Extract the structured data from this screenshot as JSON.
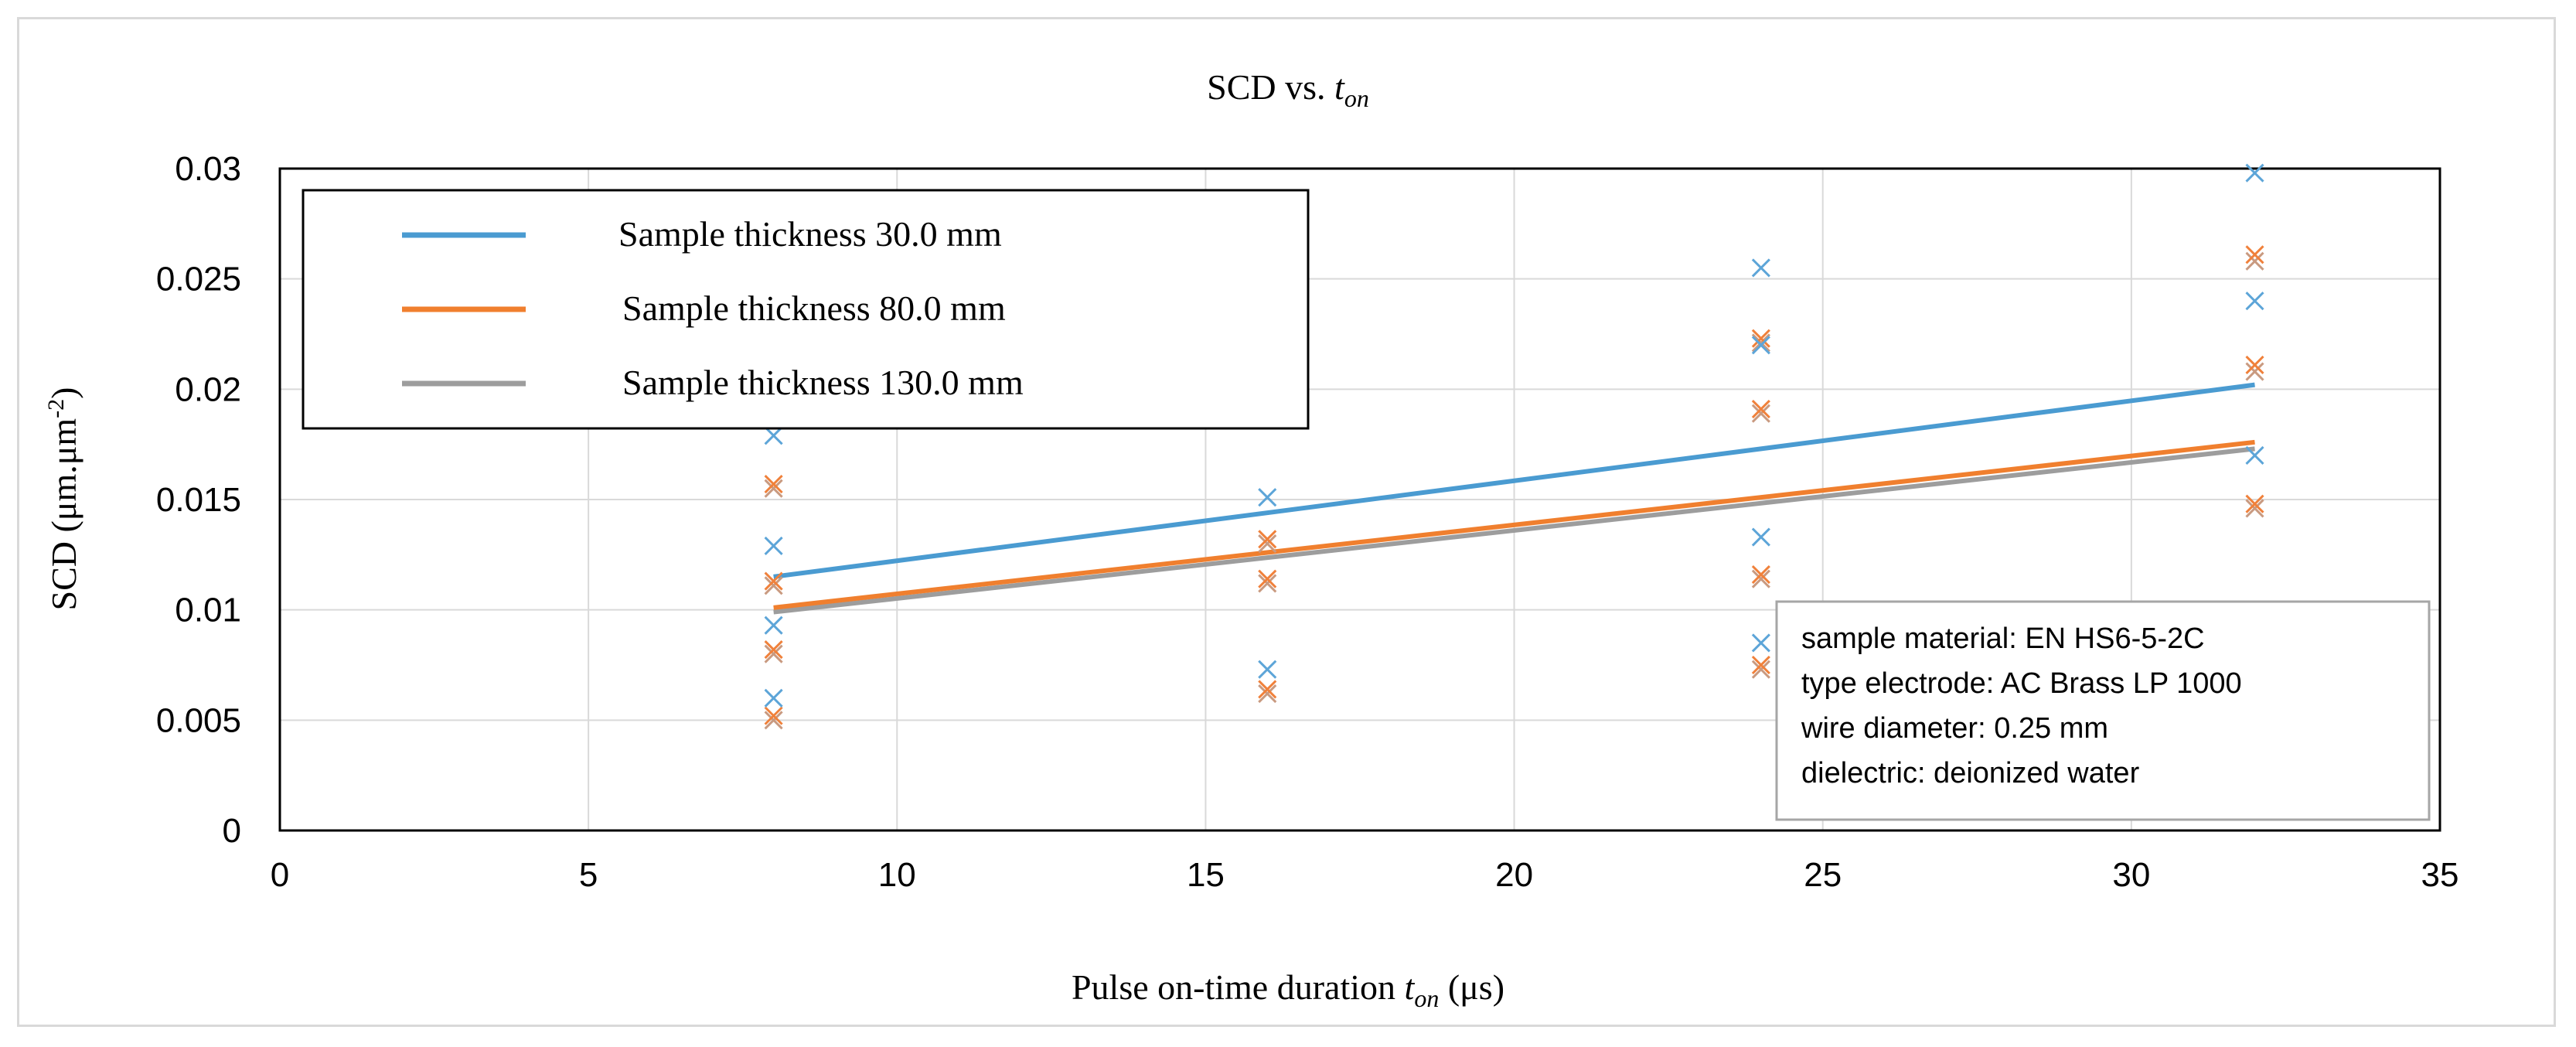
{
  "chart_data": {
    "type": "scatter",
    "title": {
      "main": "SCD vs. ",
      "italic": "t",
      "sub": "on"
    },
    "xlabel": {
      "prefix": "Pulse on-time duration ",
      "italic": "t",
      "sub": "on",
      "suffix": " (μs)"
    },
    "ylabel": {
      "prefix": "SCD (μm.μm",
      "sup": "-2",
      "suffix": ")"
    },
    "xlim": [
      0,
      35
    ],
    "ylim": [
      0,
      0.03
    ],
    "xticks": [
      0,
      5,
      10,
      15,
      20,
      25,
      30,
      35
    ],
    "yticks": [
      0,
      0.005,
      0.01,
      0.015,
      0.02,
      0.025,
      0.03
    ],
    "ytick_labels": [
      "0",
      "0.005",
      "0.01",
      "0.015",
      "0.02",
      "0.025",
      "0.03"
    ],
    "grid": true,
    "legend_position": "top-left",
    "series": [
      {
        "name": "Sample thickness 30.0 mm",
        "color": "#4a9bd1",
        "marker_color": "#5da5d8",
        "points": [
          [
            8,
            0.0179
          ],
          [
            8,
            0.0129
          ],
          [
            8,
            0.0093
          ],
          [
            8,
            0.006
          ],
          [
            16,
            0.0151
          ],
          [
            16,
            0.0073
          ],
          [
            24,
            0.0255
          ],
          [
            24,
            0.022
          ],
          [
            24,
            0.0133
          ],
          [
            24,
            0.0085
          ],
          [
            32,
            0.0298
          ],
          [
            32,
            0.024
          ],
          [
            32,
            0.017
          ]
        ],
        "trend": [
          [
            8,
            0.0115
          ],
          [
            32,
            0.0202
          ]
        ]
      },
      {
        "name": "Sample thickness 80.0 mm",
        "color": "#f07f2e",
        "marker_color": "#f0813b",
        "points": [
          [
            8,
            0.0157
          ],
          [
            8,
            0.0113
          ],
          [
            8,
            0.0082
          ],
          [
            8,
            0.0052
          ],
          [
            16,
            0.0132
          ],
          [
            16,
            0.0114
          ],
          [
            16,
            0.0064
          ],
          [
            24,
            0.0223
          ],
          [
            24,
            0.0191
          ],
          [
            24,
            0.0116
          ],
          [
            24,
            0.0075
          ],
          [
            32,
            0.0261
          ],
          [
            32,
            0.0211
          ],
          [
            32,
            0.0148
          ]
        ],
        "trend": [
          [
            8,
            0.0101
          ],
          [
            32,
            0.0176
          ]
        ]
      },
      {
        "name": "Sample thickness 130.0 mm",
        "color": "#9d9d9d",
        "marker_color": "#c99a80",
        "points": [
          [
            8,
            0.0155
          ],
          [
            8,
            0.0111
          ],
          [
            8,
            0.008
          ],
          [
            8,
            0.005
          ],
          [
            16,
            0.013
          ],
          [
            16,
            0.0112
          ],
          [
            16,
            0.0062
          ],
          [
            24,
            0.0221
          ],
          [
            24,
            0.0189
          ],
          [
            24,
            0.0114
          ],
          [
            24,
            0.0073
          ],
          [
            32,
            0.0258
          ],
          [
            32,
            0.0208
          ],
          [
            32,
            0.0146
          ]
        ],
        "trend": [
          [
            8,
            0.0099
          ],
          [
            32,
            0.0173
          ]
        ]
      }
    ],
    "annotation": [
      "sample material: EN HS6-5-2C",
      "type electrode: AC Brass LP 1000",
      "wire diameter: 0.25 mm",
      "dielectric: deionized water"
    ]
  }
}
